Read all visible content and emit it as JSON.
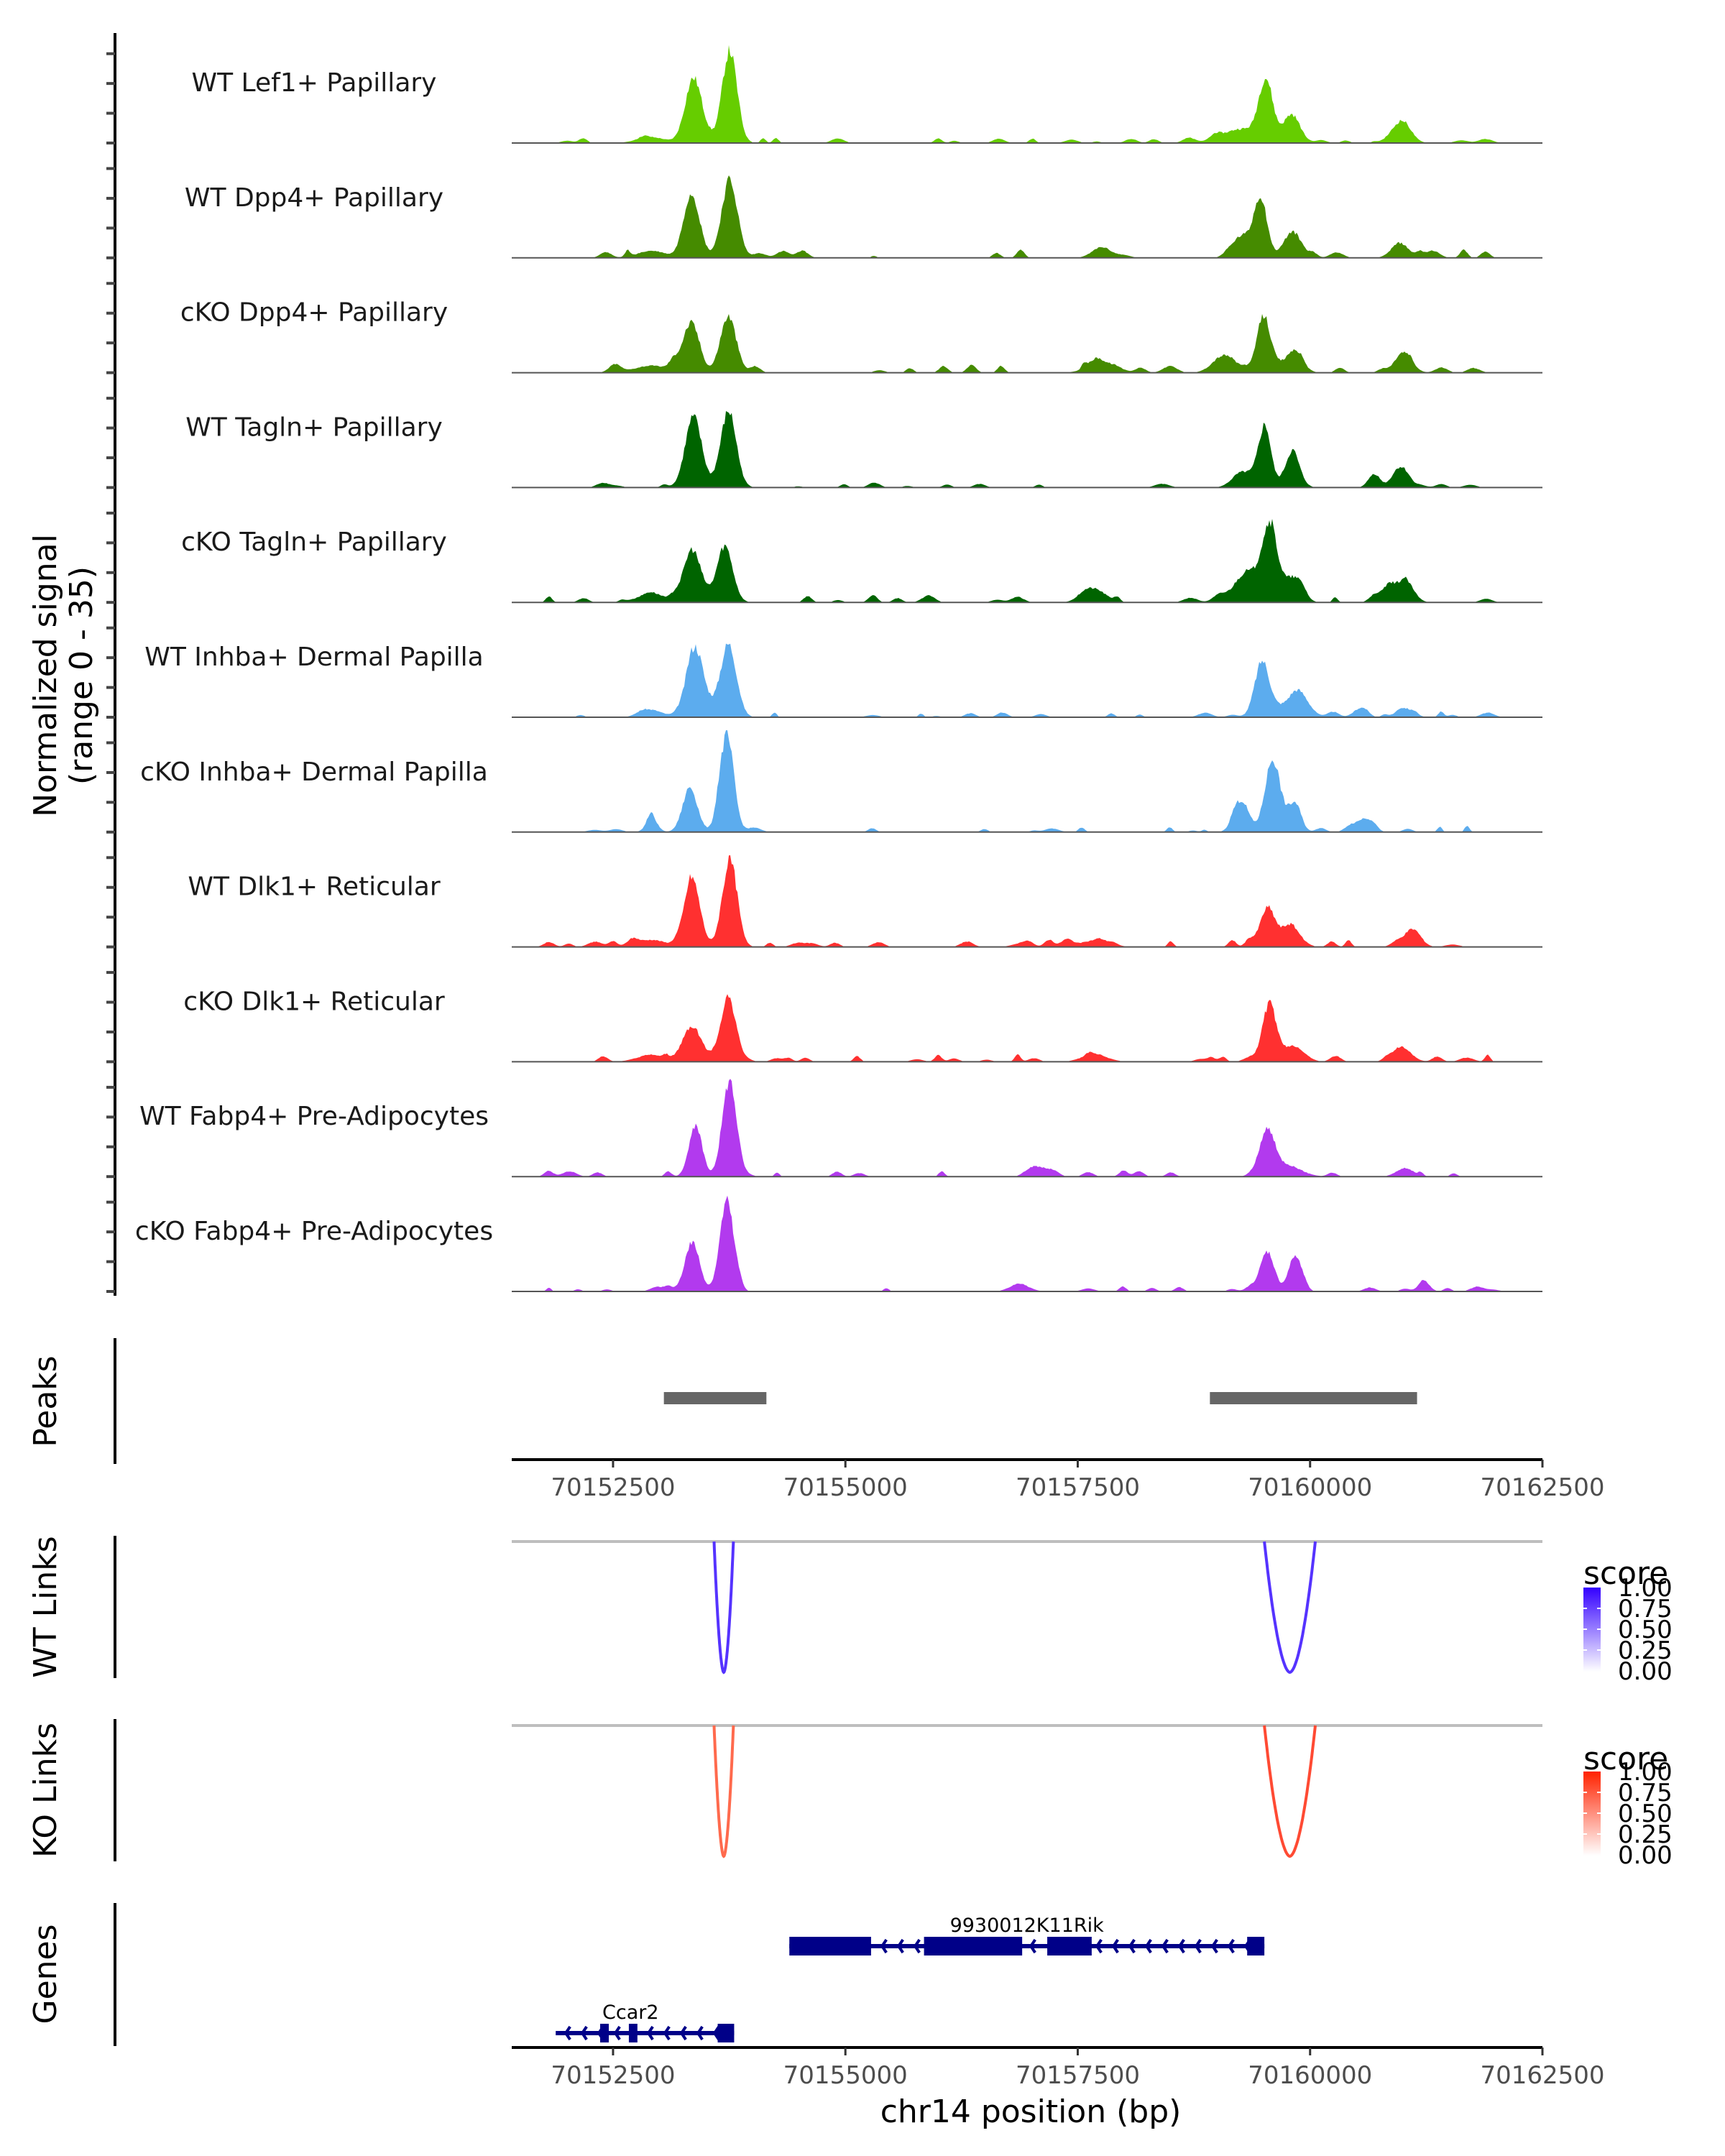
{
  "chart_data": {
    "type": "area",
    "title": "",
    "xlabel": "chr14 position (bp)",
    "ylabel": "Normalized signal\n(range 0 - 35)",
    "ylabel_lines": [
      "Normalized signal",
      "(range 0 - 35)"
    ],
    "xlim": [
      70151410,
      70162500
    ],
    "ylim": [
      0,
      35
    ],
    "x_ticks": [
      70152500,
      70155000,
      70157500,
      70160000,
      70162500
    ],
    "x_tick_labels": [
      "70152500",
      "70155000",
      "70157500",
      "70160000",
      "70162500"
    ],
    "grid": false,
    "coverage_tracks": [
      {
        "name": "WT Lef1+ Papillary",
        "color": "#66CD00",
        "background": 1.0,
        "seed": 11,
        "peaks": [
          [
            70153367,
            23,
            90
          ],
          [
            70153754,
            32.6,
            80
          ],
          [
            70152916,
            2,
            150
          ],
          [
            70159262,
            5,
            200
          ],
          [
            70159524,
            21,
            75
          ],
          [
            70159802,
            10,
            90
          ],
          [
            70160997,
            7.5,
            90
          ],
          [
            70160866,
            1.5,
            80
          ]
        ]
      },
      {
        "name": "WT Dpp4+ Papillary",
        "color": "#458B00",
        "background": 1.6,
        "seed": 23,
        "peaks": [
          [
            70153351,
            21,
            85
          ],
          [
            70153754,
            27.5,
            85
          ],
          [
            70152916,
            2.5,
            150
          ],
          [
            70159262,
            7.7,
            100
          ],
          [
            70159463,
            20,
            70
          ],
          [
            70159825,
            8.5,
            90
          ],
          [
            70160966,
            5.3,
            90
          ],
          [
            70157758,
            3.8,
            100
          ]
        ]
      },
      {
        "name": "cKO Dpp4+ Papillary",
        "color": "#458B00",
        "background": 1.5,
        "seed": 37,
        "peaks": [
          [
            70153329,
            15.5,
            90
          ],
          [
            70153740,
            20,
            85
          ],
          [
            70152916,
            2.5,
            180
          ],
          [
            70159054,
            5.6,
            110
          ],
          [
            70159502,
            20.3,
            75
          ],
          [
            70159825,
            8,
            90
          ],
          [
            70161004,
            7.2,
            90
          ],
          [
            70157758,
            3,
            150
          ]
        ]
      },
      {
        "name": "WT Tagln+ Papillary",
        "color": "#006400",
        "background": 0.9,
        "seed": 41,
        "peaks": [
          [
            70153367,
            23.5,
            90
          ],
          [
            70153740,
            26,
            85
          ],
          [
            70159262,
            5.3,
            100
          ],
          [
            70159509,
            20.5,
            70
          ],
          [
            70159809,
            12,
            80
          ],
          [
            70160680,
            3.6,
            60
          ],
          [
            70160966,
            7.2,
            80
          ]
        ]
      },
      {
        "name": "cKO Tagln+ Papillary",
        "color": "#006400",
        "background": 1.4,
        "seed": 53,
        "peaks": [
          [
            70153351,
            18.7,
            90
          ],
          [
            70153702,
            20,
            85
          ],
          [
            70152916,
            3,
            150
          ],
          [
            70157681,
            4.6,
            120
          ],
          [
            70159300,
            10,
            120
          ],
          [
            70159563,
            26.7,
            90
          ],
          [
            70159825,
            8.5,
            90
          ],
          [
            70160865,
            6.5,
            100
          ],
          [
            70161051,
            5.6,
            80
          ]
        ]
      },
      {
        "name": "WT Inhba+ Dermal Papilla",
        "color": "#5CACEE",
        "background": 1.0,
        "seed": 67,
        "peaks": [
          [
            70153381,
            25,
            90
          ],
          [
            70153740,
            25.6,
            85
          ],
          [
            70152916,
            2.5,
            120
          ],
          [
            70159486,
            20,
            80
          ],
          [
            70159863,
            9.7,
            110
          ],
          [
            70160534,
            3,
            70
          ],
          [
            70161020,
            3.2,
            90
          ]
        ]
      },
      {
        "name": "cKO Inhba+ Dermal Papilla",
        "color": "#5CACEE",
        "background": 1.1,
        "seed": 79,
        "peaks": [
          [
            70152916,
            4.8,
            60
          ],
          [
            70153329,
            15.3,
            80
          ],
          [
            70153724,
            34,
            75
          ],
          [
            70159262,
            11,
            80
          ],
          [
            70159601,
            25,
            80
          ],
          [
            70159825,
            9,
            70
          ],
          [
            70160589,
            4.8,
            80
          ]
        ]
      },
      {
        "name": "WT Dlk1+ Reticular",
        "color": "#FF3030",
        "background": 1.3,
        "seed": 83,
        "peaks": [
          [
            70153351,
            23.7,
            85
          ],
          [
            70153754,
            29.8,
            80
          ],
          [
            70152916,
            2.5,
            150
          ],
          [
            70157681,
            2.2,
            150
          ],
          [
            70159540,
            13.3,
            80
          ],
          [
            70159786,
            8,
            90
          ],
          [
            70161074,
            4.3,
            90
          ]
        ]
      },
      {
        "name": "cKO Dlk1+ Reticular",
        "color": "#FF3030",
        "background": 1.3,
        "seed": 97,
        "peaks": [
          [
            70153351,
            12.5,
            100
          ],
          [
            70153740,
            23,
            80
          ],
          [
            70152916,
            2.5,
            150
          ],
          [
            70157681,
            2.7,
            130
          ],
          [
            70159563,
            19.7,
            75
          ],
          [
            70159825,
            5.6,
            110
          ],
          [
            70160981,
            5.3,
            100
          ]
        ]
      },
      {
        "name": "WT Fabp4+ Pre-Adipocytes",
        "color": "#B23AEE",
        "background": 1.1,
        "seed": 101,
        "peaks": [
          [
            70153389,
            17.6,
            70
          ],
          [
            70153754,
            33.7,
            75
          ],
          [
            70157095,
            3.2,
            100
          ],
          [
            70159540,
            15.6,
            75
          ],
          [
            70159748,
            4,
            150
          ],
          [
            70161020,
            3,
            90
          ]
        ]
      },
      {
        "name": "cKO Fabp4+ Pre-Adipocytes",
        "color": "#B23AEE",
        "background": 1.1,
        "seed": 113,
        "peaks": [
          [
            70153351,
            16.7,
            80
          ],
          [
            70153724,
            30.8,
            75
          ],
          [
            70156872,
            2.7,
            100
          ],
          [
            70159540,
            14,
            75
          ],
          [
            70159840,
            12.5,
            70
          ],
          [
            70161228,
            2.7,
            60
          ]
        ]
      }
    ],
    "peaks_track": {
      "label": "Peaks",
      "color": "#666666",
      "regions": [
        [
          70153047,
          70154150
        ],
        [
          70158922,
          70161151
        ]
      ]
    },
    "link_tracks": [
      {
        "label": "WT Links",
        "color_high": "#3300FF",
        "legend_title": "score",
        "links": [
          {
            "start": 70153587,
            "end": 70153795,
            "score": 0.85,
            "color": "#5533FF"
          },
          {
            "start": 70159508,
            "end": 70160056,
            "score": 0.85,
            "color": "#5533FF"
          }
        ]
      },
      {
        "label": "KO Links",
        "color_high": "#FF2200",
        "legend_title": "score",
        "links": [
          {
            "start": 70153587,
            "end": 70153795,
            "score": 0.7,
            "color": "#FF6A4D"
          },
          {
            "start": 70159508,
            "end": 70160056,
            "score": 0.85,
            "color": "#FF4A33"
          }
        ]
      }
    ],
    "legend_ticks": [
      "1.00",
      "0.75",
      "0.50",
      "0.25",
      "0.00"
    ],
    "genes_track": {
      "label": "Genes",
      "color": "#000088",
      "genes": [
        {
          "name": "9930012K11Rik",
          "strand": "-",
          "start": 70154397,
          "end": 70159508,
          "row": 0,
          "exons": [
            [
              70154397,
              70155276
            ],
            [
              70155846,
              70156902
            ],
            [
              70157172,
              70157650
            ],
            [
              70159323,
              70159508
            ]
          ]
        },
        {
          "name": "Ccar2",
          "strand": "-",
          "start": 70151883,
          "end": 70153803,
          "row": 1,
          "exons": [
            [
              70152361,
              70152454
            ],
            [
              70152670,
              70152762
            ],
            [
              70153626,
              70153803
            ]
          ]
        }
      ]
    }
  }
}
